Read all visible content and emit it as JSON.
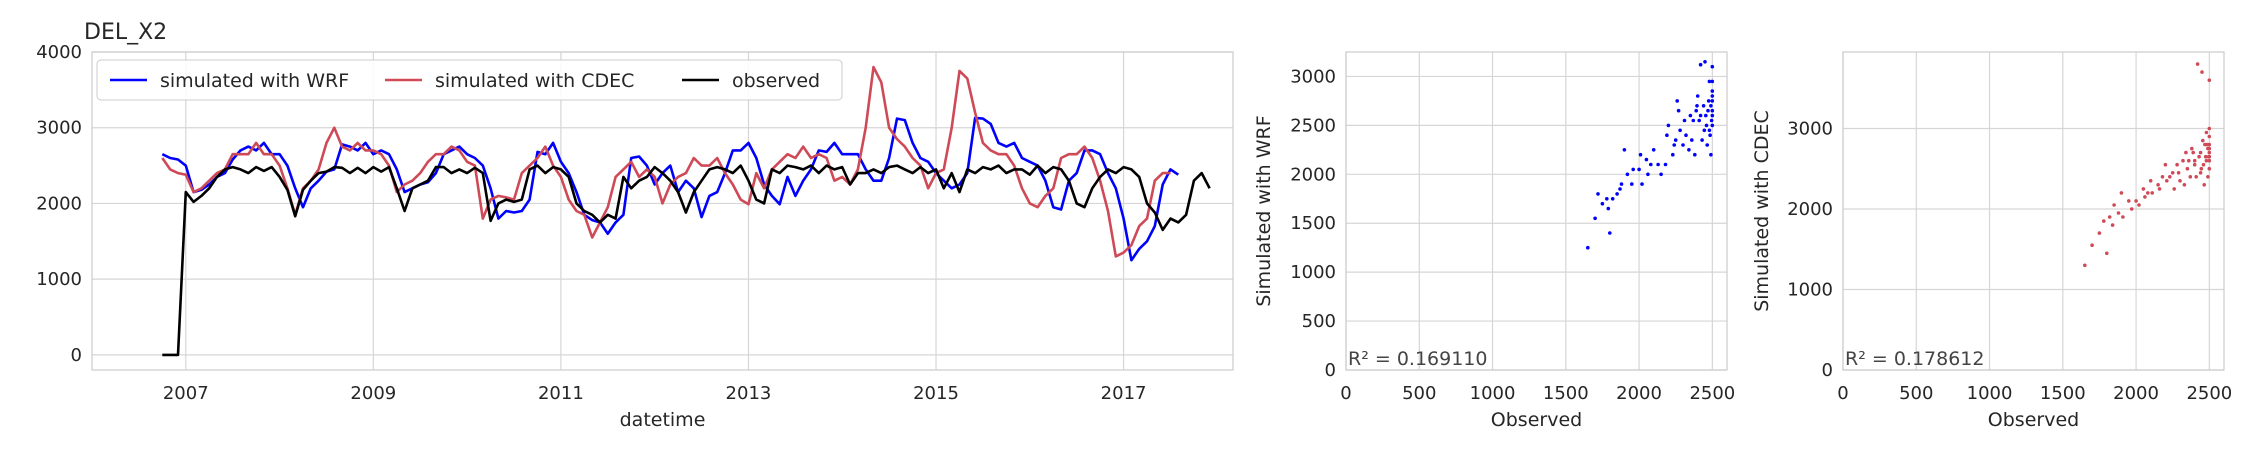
{
  "chart_data": [
    {
      "type": "line",
      "title": "DEL_X2",
      "xlabel": "datetime",
      "ylabel": "",
      "xlim": [
        "2006-01-01",
        "2018-03-01"
      ],
      "ylim": [
        -200,
        4000
      ],
      "yticks": [
        0,
        1000,
        2000,
        3000,
        4000
      ],
      "xticks": [
        "2007",
        "2009",
        "2011",
        "2013",
        "2015",
        "2017"
      ],
      "grid": true,
      "legend": "top-left",
      "x_start": "2006-10",
      "x_step": "monthly",
      "series": [
        {
          "name": "simulated with WRF",
          "color": "#0000ff",
          "values": [
            2650,
            2600,
            2580,
            2500,
            2150,
            2180,
            2250,
            2350,
            2400,
            2580,
            2700,
            2750,
            2700,
            2800,
            2650,
            2650,
            2500,
            2200,
            1950,
            2200,
            2300,
            2420,
            2450,
            2780,
            2750,
            2700,
            2800,
            2650,
            2700,
            2650,
            2450,
            2150,
            2200,
            2250,
            2280,
            2400,
            2650,
            2700,
            2750,
            2650,
            2600,
            2500,
            2200,
            1800,
            1900,
            1880,
            1900,
            2050,
            2680,
            2650,
            2800,
            2550,
            2400,
            2150,
            1850,
            1780,
            1750,
            1600,
            1750,
            1850,
            2600,
            2620,
            2500,
            2250,
            2400,
            2500,
            2150,
            2300,
            2200,
            1820,
            2100,
            2150,
            2400,
            2700,
            2700,
            2800,
            2600,
            2250,
            2100,
            1990,
            2350,
            2100,
            2300,
            2450,
            2700,
            2680,
            2800,
            2650,
            2650,
            2650,
            2450,
            2300,
            2300,
            2600,
            3120,
            3100,
            2800,
            2600,
            2550,
            2400,
            2300,
            2200,
            2250,
            2400,
            3130,
            3120,
            3050,
            2800,
            2750,
            2800,
            2600,
            2550,
            2500,
            2300,
            1950,
            1920,
            2300,
            2400,
            2700,
            2700,
            2650,
            2400,
            2200,
            1800,
            1250,
            1400,
            1500,
            1700,
            2250,
            2450,
            2380
          ],
          "values_note": "monthly"
        },
        {
          "name": "simulated with CDEC",
          "color": "#cf4a57",
          "values": [
            2600,
            2450,
            2400,
            2380,
            2150,
            2200,
            2300,
            2400,
            2450,
            2650,
            2650,
            2650,
            2800,
            2650,
            2650,
            2500,
            2200,
            1850,
            2200,
            2300,
            2450,
            2800,
            3000,
            2750,
            2700,
            2800,
            2700,
            2700,
            2650,
            2500,
            2150,
            2250,
            2300,
            2400,
            2550,
            2650,
            2650,
            2750,
            2700,
            2550,
            2500,
            1800,
            2050,
            2100,
            2080,
            2050,
            2400,
            2500,
            2600,
            2750,
            2500,
            2350,
            2050,
            1900,
            1850,
            1550,
            1750,
            1950,
            2350,
            2450,
            2550,
            2350,
            2450,
            2350,
            2000,
            2250,
            2350,
            2400,
            2600,
            2500,
            2500,
            2600,
            2400,
            2250,
            2050,
            1990,
            2400,
            2200,
            2450,
            2550,
            2650,
            2600,
            2750,
            2600,
            2650,
            2600,
            2300,
            2350,
            2250,
            2450,
            3000,
            3800,
            3600,
            3000,
            2850,
            2750,
            2600,
            2500,
            2200,
            2400,
            2450,
            3000,
            3750,
            3650,
            3200,
            2800,
            2700,
            2650,
            2650,
            2500,
            2200,
            2000,
            1950,
            2100,
            2200,
            2600,
            2650,
            2650,
            2750,
            2600,
            2300,
            1900,
            1300,
            1350,
            1450,
            1700,
            1800,
            2300,
            2400,
            2400
          ],
          "values_note": "monthly"
        },
        {
          "name": "observed",
          "color": "#000000",
          "values": [
            0,
            0,
            0,
            2150,
            2020,
            2100,
            2200,
            2350,
            2450,
            2480,
            2450,
            2400,
            2480,
            2430,
            2480,
            2350,
            2180,
            1830,
            2180,
            2300,
            2400,
            2420,
            2480,
            2470,
            2400,
            2470,
            2400,
            2480,
            2420,
            2480,
            2200,
            1900,
            2200,
            2250,
            2300,
            2480,
            2480,
            2400,
            2450,
            2400,
            2470,
            2400,
            1770,
            2000,
            2050,
            2020,
            2050,
            2450,
            2500,
            2400,
            2480,
            2450,
            2350,
            2000,
            1900,
            1850,
            1750,
            1850,
            1800,
            2350,
            2200,
            2300,
            2350,
            2480,
            2400,
            2300,
            2150,
            1880,
            2150,
            2300,
            2450,
            2480,
            2450,
            2400,
            2500,
            2300,
            2050,
            2000,
            2450,
            2400,
            2500,
            2480,
            2450,
            2500,
            2400,
            2500,
            2450,
            2480,
            2250,
            2400,
            2400,
            2450,
            2400,
            2480,
            2500,
            2450,
            2400,
            2480,
            2400,
            2450,
            2200,
            2400,
            2150,
            2450,
            2400,
            2480,
            2450,
            2500,
            2400,
            2450,
            2450,
            2380,
            2500,
            2400,
            2480,
            2450,
            2300,
            2000,
            1950,
            2200,
            2350,
            2450,
            2400,
            2480,
            2450,
            2350,
            2000,
            1880,
            1650,
            1800,
            1750,
            1850,
            2300,
            2400,
            2200
          ],
          "values_note": "monthly"
        }
      ]
    },
    {
      "type": "scatter",
      "title": "",
      "xlabel": "Observed",
      "ylabel": "Simulated with WRF",
      "xlim": [
        0,
        2600
      ],
      "ylim": [
        0,
        3250
      ],
      "xticks": [
        0,
        500,
        1000,
        1500,
        2000,
        2500
      ],
      "yticks": [
        0,
        500,
        1000,
        1500,
        2000,
        2500,
        3000
      ],
      "grid": true,
      "color": "#0000ff",
      "annotation": "R² = 0.169110",
      "points": [
        [
          1650,
          1250
        ],
        [
          1700,
          1550
        ],
        [
          1720,
          1800
        ],
        [
          1750,
          1700
        ],
        [
          1780,
          1750
        ],
        [
          1800,
          1400
        ],
        [
          1820,
          1750
        ],
        [
          1850,
          1800
        ],
        [
          1870,
          1850
        ],
        [
          1900,
          2250
        ],
        [
          1920,
          2000
        ],
        [
          1950,
          1900
        ],
        [
          2000,
          2050
        ],
        [
          2020,
          1900
        ],
        [
          2050,
          2150
        ],
        [
          2080,
          2100
        ],
        [
          2100,
          2250
        ],
        [
          2150,
          2000
        ],
        [
          2180,
          2100
        ],
        [
          2200,
          2500
        ],
        [
          2230,
          2200
        ],
        [
          2250,
          2350
        ],
        [
          2280,
          2450
        ],
        [
          2300,
          2300
        ],
        [
          2320,
          2400
        ],
        [
          2350,
          2600
        ],
        [
          2370,
          2550
        ],
        [
          2380,
          2200
        ],
        [
          2400,
          2800
        ],
        [
          2420,
          2600
        ],
        [
          2430,
          2350
        ],
        [
          2440,
          2700
        ],
        [
          2450,
          3150
        ],
        [
          2460,
          2500
        ],
        [
          2470,
          2650
        ],
        [
          2480,
          2450
        ],
        [
          2490,
          2700
        ],
        [
          2495,
          2550
        ],
        [
          2500,
          2800
        ],
        [
          2500,
          2750
        ],
        [
          2500,
          2650
        ],
        [
          2500,
          3100
        ],
        [
          2500,
          2600
        ],
        [
          2500,
          2500
        ],
        [
          2490,
          2200
        ],
        [
          2485,
          2400
        ],
        [
          2475,
          2750
        ],
        [
          2465,
          2300
        ],
        [
          2455,
          2600
        ],
        [
          2445,
          2450
        ],
        [
          2410,
          2550
        ],
        [
          2390,
          2650
        ],
        [
          2360,
          2350
        ],
        [
          2340,
          2250
        ],
        [
          2310,
          2550
        ],
        [
          2270,
          2650
        ],
        [
          2240,
          2300
        ],
        [
          2190,
          2400
        ],
        [
          2130,
          2100
        ],
        [
          2060,
          2000
        ],
        [
          2010,
          2200
        ],
        [
          1960,
          2050
        ],
        [
          1880,
          1900
        ],
        [
          1790,
          1650
        ],
        [
          2500,
          2850
        ],
        [
          2500,
          2950
        ],
        [
          2480,
          2950
        ],
        [
          2420,
          3120
        ],
        [
          2395,
          2700
        ],
        [
          2260,
          2750
        ]
      ]
    },
    {
      "type": "scatter",
      "title": "",
      "xlabel": "Observed",
      "ylabel": "Simulated with CDEC",
      "xlim": [
        0,
        2600
      ],
      "ylim": [
        0,
        3950
      ],
      "xticks": [
        0,
        500,
        1000,
        1500,
        2000,
        2500
      ],
      "yticks": [
        0,
        1000,
        2000,
        3000
      ],
      "grid": true,
      "color": "#cf4a57",
      "annotation": "R² = 0.178612",
      "points": [
        [
          1650,
          1300
        ],
        [
          1700,
          1550
        ],
        [
          1750,
          1700
        ],
        [
          1780,
          1850
        ],
        [
          1800,
          1450
        ],
        [
          1820,
          1900
        ],
        [
          1850,
          2050
        ],
        [
          1880,
          1950
        ],
        [
          1900,
          2200
        ],
        [
          1950,
          2100
        ],
        [
          2000,
          2100
        ],
        [
          2020,
          2050
        ],
        [
          2050,
          2250
        ],
        [
          2080,
          2200
        ],
        [
          2100,
          2350
        ],
        [
          2150,
          2300
        ],
        [
          2180,
          2400
        ],
        [
          2200,
          2550
        ],
        [
          2230,
          2400
        ],
        [
          2250,
          2450
        ],
        [
          2280,
          2550
        ],
        [
          2300,
          2350
        ],
        [
          2320,
          2600
        ],
        [
          2350,
          2500
        ],
        [
          2370,
          2400
        ],
        [
          2390,
          2700
        ],
        [
          2400,
          2550
        ],
        [
          2420,
          3800
        ],
        [
          2430,
          2650
        ],
        [
          2440,
          2700
        ],
        [
          2450,
          3700
        ],
        [
          2460,
          2550
        ],
        [
          2470,
          2800
        ],
        [
          2480,
          2600
        ],
        [
          2490,
          2750
        ],
        [
          2495,
          2650
        ],
        [
          2500,
          3600
        ],
        [
          2500,
          2900
        ],
        [
          2500,
          2750
        ],
        [
          2500,
          2700
        ],
        [
          2500,
          2650
        ],
        [
          2500,
          2600
        ],
        [
          2500,
          2500
        ],
        [
          2490,
          2400
        ],
        [
          2485,
          2800
        ],
        [
          2475,
          2650
        ],
        [
          2465,
          2300
        ],
        [
          2455,
          2850
        ],
        [
          2445,
          2500
        ],
        [
          2410,
          2400
        ],
        [
          2360,
          2600
        ],
        [
          2330,
          2300
        ],
        [
          2290,
          2450
        ],
        [
          2260,
          2250
        ],
        [
          2210,
          2350
        ],
        [
          2160,
          2250
        ],
        [
          2110,
          2200
        ],
        [
          2060,
          2150
        ],
        [
          1970,
          2000
        ],
        [
          1910,
          1900
        ],
        [
          1840,
          1800
        ],
        [
          2500,
          3000
        ],
        [
          2500,
          2800
        ],
        [
          2480,
          2950
        ],
        [
          2440,
          2450
        ],
        [
          2400,
          2600
        ],
        [
          2380,
          2750
        ],
        [
          2340,
          2700
        ]
      ]
    }
  ]
}
